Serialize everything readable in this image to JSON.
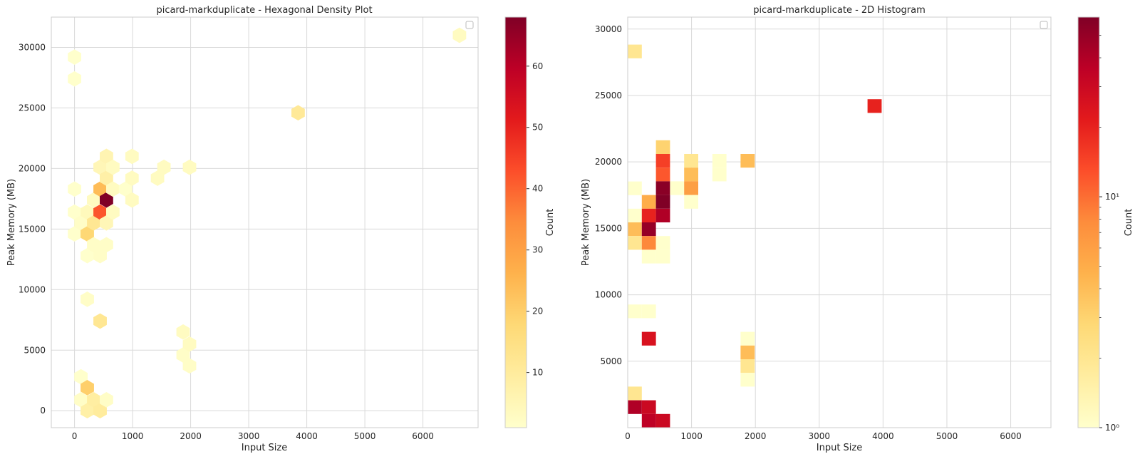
{
  "chart_data": [
    {
      "type": "hexbin",
      "title": "picard-markduplicate - Hexagonal Density Plot",
      "xlabel": "Input Size",
      "ylabel": "Peak Memory (MB)",
      "xlim": [
        -400,
        6950
      ],
      "ylim": [
        -1400,
        32500
      ],
      "xticks": [
        0,
        1000,
        2000,
        3000,
        4000,
        5000,
        6000
      ],
      "yticks": [
        0,
        5000,
        10000,
        15000,
        20000,
        25000,
        30000
      ],
      "colorbar": {
        "label": "Count",
        "min": 1,
        "max": 68,
        "ticks": [
          10,
          20,
          30,
          40,
          50,
          60
        ],
        "scale": "linear",
        "colormap": "YlOrRd"
      },
      "legend": "top-right (empty)",
      "grid": true,
      "cells": [
        {
          "x": 0,
          "y": 29200,
          "count": 1
        },
        {
          "x": 0,
          "y": 27400,
          "count": 1
        },
        {
          "x": 0,
          "y": 18300,
          "count": 1
        },
        {
          "x": 0,
          "y": 16400,
          "count": 1
        },
        {
          "x": 0,
          "y": 14600,
          "count": 1
        },
        {
          "x": 110,
          "y": 15500,
          "count": 2
        },
        {
          "x": 110,
          "y": 2800,
          "count": 1
        },
        {
          "x": 110,
          "y": 900,
          "count": 2
        },
        {
          "x": 220,
          "y": 16400,
          "count": 4
        },
        {
          "x": 220,
          "y": 14600,
          "count": 18
        },
        {
          "x": 220,
          "y": 12800,
          "count": 1
        },
        {
          "x": 220,
          "y": 9200,
          "count": 2
        },
        {
          "x": 220,
          "y": 1900,
          "count": 20
        },
        {
          "x": 220,
          "y": 0,
          "count": 8
        },
        {
          "x": 330,
          "y": 17400,
          "count": 3
        },
        {
          "x": 330,
          "y": 15500,
          "count": 12
        },
        {
          "x": 330,
          "y": 13700,
          "count": 2
        },
        {
          "x": 330,
          "y": 900,
          "count": 9
        },
        {
          "x": 440,
          "y": 20100,
          "count": 5
        },
        {
          "x": 440,
          "y": 18300,
          "count": 24
        },
        {
          "x": 440,
          "y": 16400,
          "count": 42
        },
        {
          "x": 440,
          "y": 12800,
          "count": 2
        },
        {
          "x": 440,
          "y": 7400,
          "count": 12
        },
        {
          "x": 440,
          "y": 0,
          "count": 10
        },
        {
          "x": 550,
          "y": 21000,
          "count": 6
        },
        {
          "x": 550,
          "y": 19200,
          "count": 8
        },
        {
          "x": 550,
          "y": 17400,
          "count": 68
        },
        {
          "x": 550,
          "y": 15500,
          "count": 5
        },
        {
          "x": 550,
          "y": 13700,
          "count": 2
        },
        {
          "x": 550,
          "y": 900,
          "count": 2
        },
        {
          "x": 660,
          "y": 20100,
          "count": 3
        },
        {
          "x": 660,
          "y": 18300,
          "count": 3
        },
        {
          "x": 660,
          "y": 16400,
          "count": 3
        },
        {
          "x": 880,
          "y": 18300,
          "count": 1
        },
        {
          "x": 990,
          "y": 21000,
          "count": 3
        },
        {
          "x": 990,
          "y": 19200,
          "count": 3
        },
        {
          "x": 990,
          "y": 17400,
          "count": 3
        },
        {
          "x": 1430,
          "y": 19200,
          "count": 3
        },
        {
          "x": 1540,
          "y": 20100,
          "count": 3
        },
        {
          "x": 1980,
          "y": 20100,
          "count": 3
        },
        {
          "x": 1870,
          "y": 6500,
          "count": 3
        },
        {
          "x": 1870,
          "y": 4600,
          "count": 2
        },
        {
          "x": 1980,
          "y": 5500,
          "count": 3
        },
        {
          "x": 1980,
          "y": 3700,
          "count": 2
        },
        {
          "x": 3850,
          "y": 24600,
          "count": 11
        },
        {
          "x": 6630,
          "y": 31000,
          "count": 3
        }
      ]
    },
    {
      "type": "heatmap",
      "title": "picard-markduplicate - 2D Histogram",
      "xlabel": "Input Size",
      "ylabel": "Peak Memory (MB)",
      "xlim": [
        0,
        6630
      ],
      "ylim": [
        0,
        30900
      ],
      "xticks": [
        0,
        1000,
        2000,
        3000,
        4000,
        5000,
        6000
      ],
      "yticks": [
        5000,
        10000,
        15000,
        20000,
        25000,
        30000
      ],
      "bin_width": 221,
      "bin_height": 1030,
      "colorbar": {
        "label": "Count",
        "min": 1,
        "max": 60,
        "scale": "log",
        "ticks": [
          1,
          10
        ],
        "tick_labels": [
          "10⁰",
          "10¹"
        ],
        "colormap": "YlOrRd"
      },
      "legend": "top-right (empty)",
      "grid": true,
      "bins": [
        {
          "x0": 0,
          "y0": 27800,
          "count": 2
        },
        {
          "x0": 0,
          "y0": 17500,
          "count": 1
        },
        {
          "x0": 0,
          "y0": 15450,
          "count": 1
        },
        {
          "x0": 0,
          "y0": 14420,
          "count": 4
        },
        {
          "x0": 0,
          "y0": 13390,
          "count": 2
        },
        {
          "x0": 0,
          "y0": 8240,
          "count": 1
        },
        {
          "x0": 0,
          "y0": 2060,
          "count": 2
        },
        {
          "x0": 0,
          "y0": 1030,
          "count": 40
        },
        {
          "x0": 221,
          "y0": 16480,
          "count": 5
        },
        {
          "x0": 221,
          "y0": 15450,
          "count": 20
        },
        {
          "x0": 221,
          "y0": 14420,
          "count": 50
        },
        {
          "x0": 221,
          "y0": 13390,
          "count": 8
        },
        {
          "x0": 221,
          "y0": 12360,
          "count": 1
        },
        {
          "x0": 221,
          "y0": 8240,
          "count": 1
        },
        {
          "x0": 221,
          "y0": 6180,
          "count": 25
        },
        {
          "x0": 221,
          "y0": 1030,
          "count": 30
        },
        {
          "x0": 221,
          "y0": 0,
          "count": 35
        },
        {
          "x0": 442,
          "y0": 20600,
          "count": 3
        },
        {
          "x0": 442,
          "y0": 19570,
          "count": 15
        },
        {
          "x0": 442,
          "y0": 18540,
          "count": 12
        },
        {
          "x0": 442,
          "y0": 17510,
          "count": 55
        },
        {
          "x0": 442,
          "y0": 16480,
          "count": 60
        },
        {
          "x0": 442,
          "y0": 15450,
          "count": 40
        },
        {
          "x0": 442,
          "y0": 13390,
          "count": 1
        },
        {
          "x0": 442,
          "y0": 12360,
          "count": 1
        },
        {
          "x0": 442,
          "y0": 0,
          "count": 30
        },
        {
          "x0": 663,
          "y0": 17510,
          "count": 1
        },
        {
          "x0": 884,
          "y0": 19570,
          "count": 2
        },
        {
          "x0": 884,
          "y0": 18540,
          "count": 4
        },
        {
          "x0": 884,
          "y0": 17510,
          "count": 6
        },
        {
          "x0": 884,
          "y0": 16480,
          "count": 1
        },
        {
          "x0": 1326,
          "y0": 19570,
          "count": 1
        },
        {
          "x0": 1326,
          "y0": 18540,
          "count": 1
        },
        {
          "x0": 1768,
          "y0": 19570,
          "count": 4
        },
        {
          "x0": 1768,
          "y0": 6180,
          "count": 1
        },
        {
          "x0": 1768,
          "y0": 5150,
          "count": 4
        },
        {
          "x0": 1768,
          "y0": 4120,
          "count": 2
        },
        {
          "x0": 1768,
          "y0": 3090,
          "count": 1
        },
        {
          "x0": 3757,
          "y0": 23690,
          "count": 20
        }
      ]
    }
  ]
}
